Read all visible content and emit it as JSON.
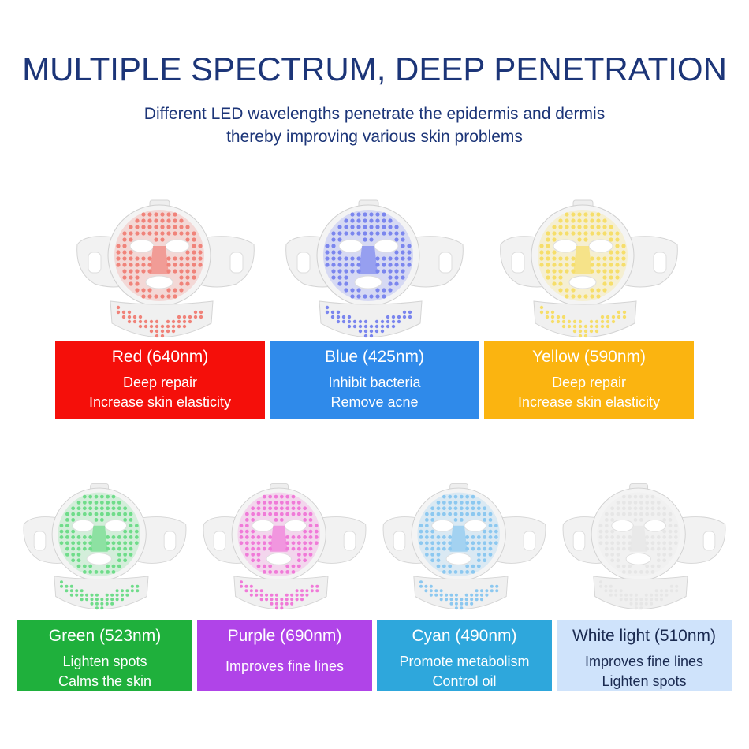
{
  "header": {
    "title": "MULTIPLE SPECTRUM, DEEP PENETRATION",
    "subtitle_line1": "Different LED wavelengths penetrate the epidermis and dermis",
    "subtitle_line2": "thereby improving various skin problems"
  },
  "lights": [
    {
      "name": "Red (640nm)",
      "lines": [
        "Deep repair",
        "Increase skin elasticity"
      ],
      "box_color": "#f50f0a",
      "led_color": "#f0837a",
      "text_color": "#ffffff"
    },
    {
      "name": "Blue (425nm)",
      "lines": [
        "Inhibit bacteria",
        "Remove acne"
      ],
      "box_color": "#2f8aea",
      "led_color": "#7b86ee",
      "text_color": "#ffffff"
    },
    {
      "name": "Yellow (590nm)",
      "lines": [
        "Deep repair",
        "Increase skin elasticity"
      ],
      "box_color": "#fbb410",
      "led_color": "#f6de6a",
      "text_color": "#ffffff"
    },
    {
      "name": "Green (523nm)",
      "lines": [
        "Lighten spots",
        "Calms the skin"
      ],
      "box_color": "#1fb03c",
      "led_color": "#6fdc8a",
      "text_color": "#ffffff"
    },
    {
      "name": "Purple (690nm)",
      "lines": [
        "Improves fine lines"
      ],
      "box_color": "#b044e8",
      "led_color": "#f07ad8",
      "text_color": "#ffffff"
    },
    {
      "name": "Cyan (490nm)",
      "lines": [
        "Promote metabolism",
        "Control oil"
      ],
      "box_color": "#2ea7dc",
      "led_color": "#8cc8f0",
      "text_color": "#ffffff"
    },
    {
      "name": "White light (510nm)",
      "lines": [
        "Improves fine lines",
        "Lighten spots"
      ],
      "box_color": "#cfe3fb",
      "led_color": "#e6e6e6",
      "text_color": "#1a2a50"
    }
  ]
}
